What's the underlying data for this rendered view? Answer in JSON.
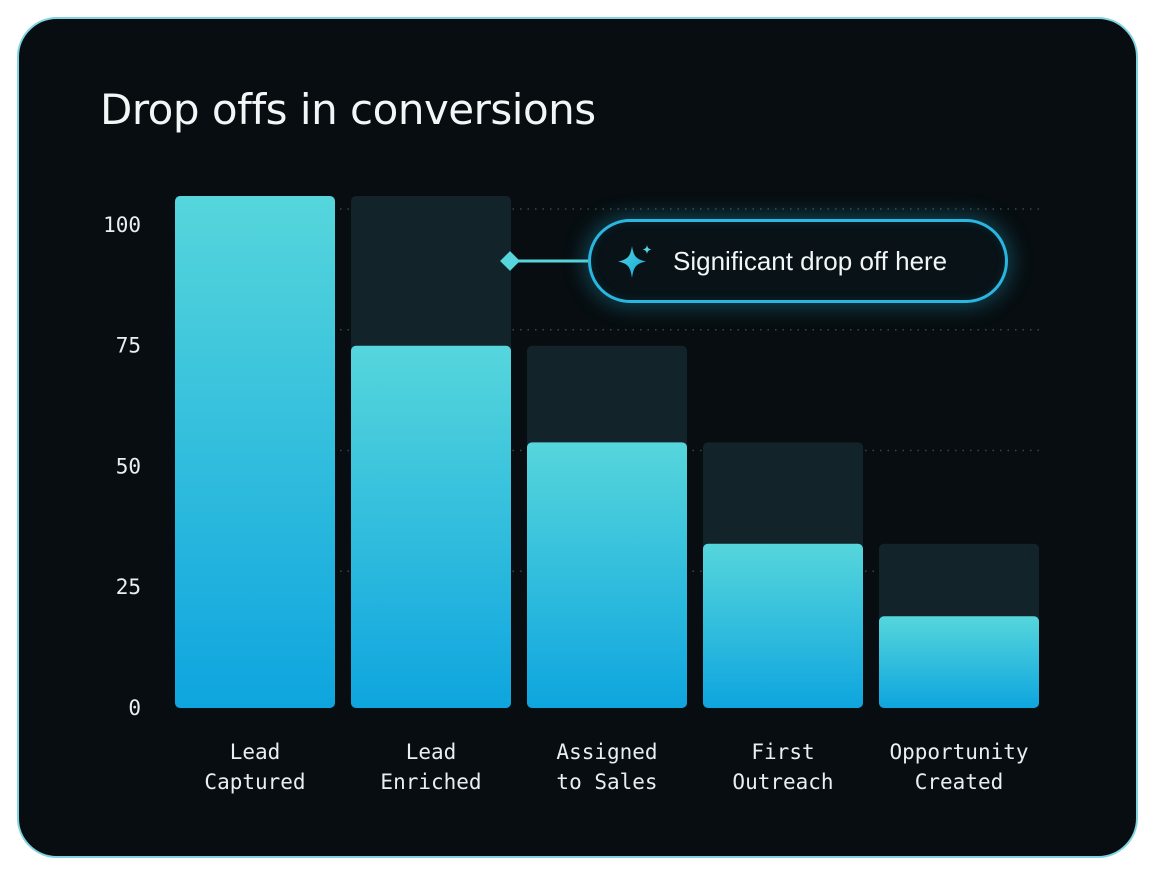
{
  "title": "Drop offs in conversions",
  "colors": {
    "background": "#070d10",
    "border": "#7fd4e0",
    "bar_top": "#56d6dc",
    "bar_bottom": "#0ea5de",
    "ghost_bar": "#12242a",
    "accent": "#29b6e0",
    "text": "#e9eef0"
  },
  "callout": {
    "icon": "sparkle-icon",
    "text": "Significant drop off here"
  },
  "chart_data": {
    "type": "bar",
    "title": "Drop offs in conversions",
    "categories": [
      [
        "Lead",
        "Captured"
      ],
      [
        "Lead",
        "Enriched"
      ],
      [
        "Assigned",
        "to Sales"
      ],
      [
        "First",
        "Outreach"
      ],
      [
        "Opportunity",
        "Created"
      ]
    ],
    "series": [
      {
        "values": [
          106,
          75,
          55,
          34,
          19
        ]
      }
    ],
    "previous_stage_values": [
      null,
      106,
      75,
      55,
      34
    ],
    "yticks": [
      0,
      25,
      50,
      75,
      100
    ],
    "ylim": [
      0,
      106
    ],
    "grid": true,
    "grid_style": "dotted",
    "annotation": {
      "category_index": 1,
      "text": "Significant drop off here"
    }
  }
}
